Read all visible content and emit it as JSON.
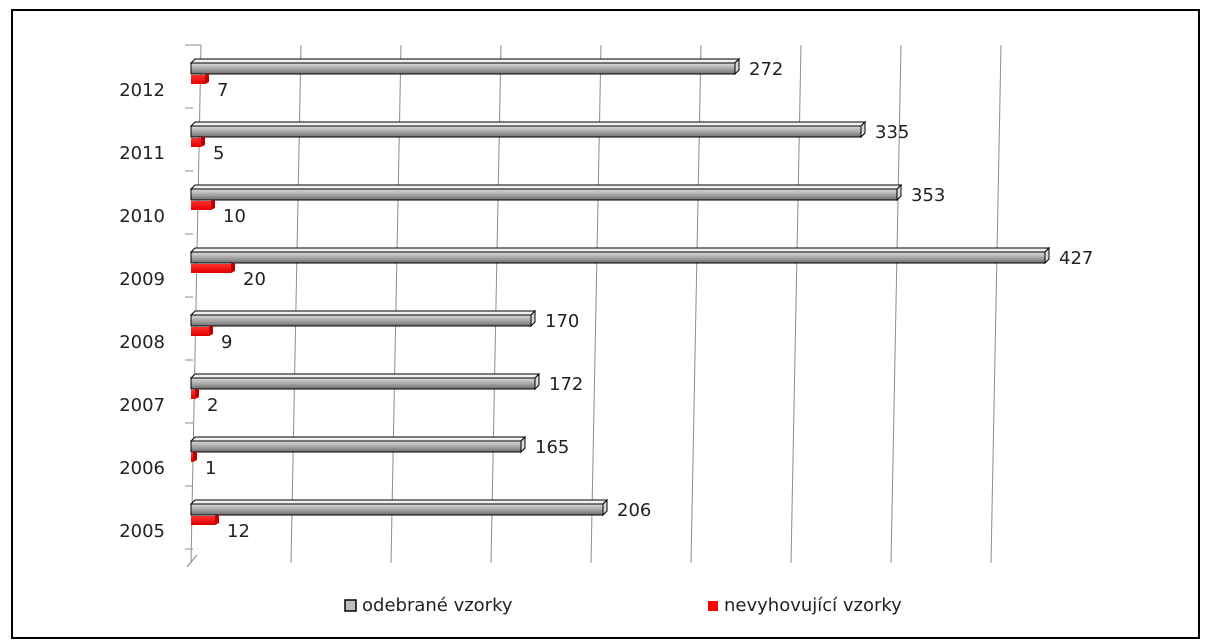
{
  "chart_data": {
    "type": "bar",
    "orientation": "horizontal",
    "categories": [
      "2012",
      "2011",
      "2010",
      "2009",
      "2008",
      "2007",
      "2006",
      "2005"
    ],
    "series": [
      {
        "name": "odebrané vzorky",
        "values": [
          272,
          335,
          353,
          427,
          170,
          172,
          165,
          206
        ],
        "color": "#8a8a8a"
      },
      {
        "name": "nevyhovující vzorky",
        "values": [
          7,
          5,
          10,
          20,
          9,
          2,
          1,
          12
        ],
        "color": "#ff0000"
      }
    ],
    "title": "",
    "xlabel": "",
    "ylabel": "",
    "xlim": [
      0,
      450
    ],
    "grid": true,
    "legend_position": "bottom"
  }
}
